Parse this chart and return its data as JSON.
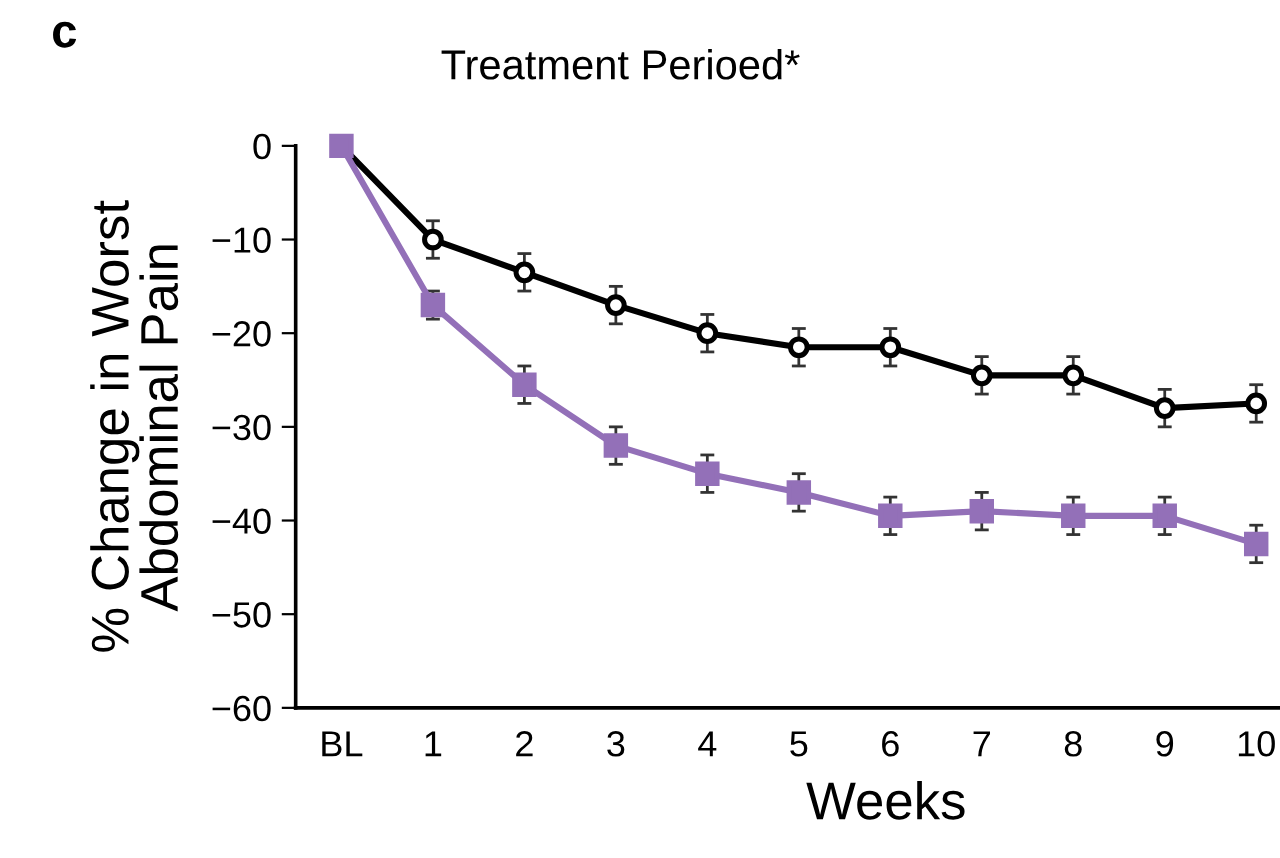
{
  "chart_data": {
    "type": "line",
    "title": "Treatment Perioed*",
    "xlabel": "Weeks",
    "ylabel": "% Change in Worst\nAbdominal Pain",
    "annotations": [
      "c"
    ],
    "categories": [
      "BL",
      "1",
      "2",
      "3",
      "4",
      "5",
      "6",
      "7",
      "8",
      "9",
      "10"
    ],
    "ylim": [
      -60,
      0
    ],
    "yticks": [
      0,
      -10,
      -20,
      -30,
      -40,
      -50,
      -60
    ],
    "grid": false,
    "legend": false,
    "series": [
      {
        "color": "#000000",
        "marker": "circle",
        "values": [
          0,
          -10,
          -13.5,
          -17,
          -20,
          -21.5,
          -21.5,
          -24.5,
          -24.5,
          -28,
          -27.5
        ],
        "errors": [
          null,
          2,
          2,
          2,
          2,
          2,
          2,
          2,
          2,
          2,
          2
        ]
      },
      {
        "color": "#9370b8",
        "marker": "square",
        "values": [
          0,
          -17,
          -25.5,
          -32,
          -35,
          -37,
          -39.5,
          -39,
          -39.5,
          -39.5,
          -42.5
        ],
        "errors": [
          null,
          1.5,
          2,
          2,
          2,
          2,
          2,
          2,
          2,
          2,
          2
        ]
      }
    ]
  }
}
